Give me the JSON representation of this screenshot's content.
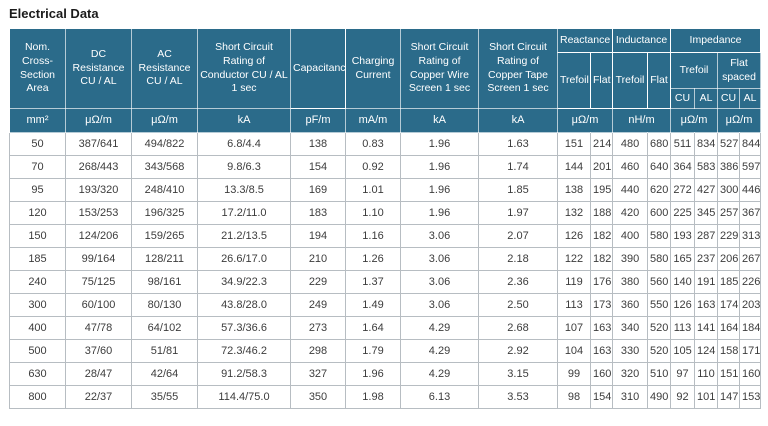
{
  "title": "Electrical Data",
  "colors": {
    "header_bg": "#2b6b8a",
    "header_text": "#ffffff",
    "header_grid_line": "#ffffff",
    "data_grid_line": "#b7bdc2",
    "data_text": "#3c3c3c",
    "page_bg": "#ffffff"
  },
  "chart_data": {
    "type": "table",
    "title": "Electrical Data",
    "header": {
      "main": [
        "Nom. Cross-Section Area",
        "DC Resistance CU / AL",
        "AC Resistance CU / AL",
        "Short Circuit Rating of Conductor CU / AL 1 sec",
        "Capacitance",
        "Charging Current",
        "Short Circuit Rating of Copper Wire Screen 1 sec",
        "Short Circuit Rating of Copper Tape Screen 1 sec"
      ],
      "reactance": {
        "label": "Reactance",
        "trefoil": "Trefoil",
        "flat": "Flat"
      },
      "inductance": {
        "label": "Inductance",
        "trefoil": "Trefoil",
        "flat": "Flat"
      },
      "impedance": {
        "label": "Impedance",
        "trefoil": {
          "label": "Trefoil",
          "cu": "CU",
          "al": "AL"
        },
        "flat_spaced": {
          "label": "Flat spaced",
          "cu": "CU",
          "al": "AL"
        }
      }
    },
    "units": [
      "mm²",
      "μΩ/m",
      "μΩ/m",
      "kA",
      "pF/m",
      "mA/m",
      "kA",
      "kA",
      "μΩ/m",
      "nH/m",
      "μΩ/m",
      "μΩ/m"
    ],
    "rows": [
      [
        "50",
        "387/641",
        "494/822",
        "6.8/4.4",
        "138",
        "0.83",
        "1.96",
        "1.63",
        "151",
        "214",
        "480",
        "680",
        "511",
        "834",
        "527",
        "844"
      ],
      [
        "70",
        "268/443",
        "343/568",
        "9.8/6.3",
        "154",
        "0.92",
        "1.96",
        "1.74",
        "144",
        "201",
        "460",
        "640",
        "364",
        "583",
        "386",
        "597"
      ],
      [
        "95",
        "193/320",
        "248/410",
        "13.3/8.5",
        "169",
        "1.01",
        "1.96",
        "1.85",
        "138",
        "195",
        "440",
        "620",
        "272",
        "427",
        "300",
        "446"
      ],
      [
        "120",
        "153/253",
        "196/325",
        "17.2/11.0",
        "183",
        "1.10",
        "1.96",
        "1.97",
        "132",
        "188",
        "420",
        "600",
        "225",
        "345",
        "257",
        "367"
      ],
      [
        "150",
        "124/206",
        "159/265",
        "21.2/13.5",
        "194",
        "1.16",
        "3.06",
        "2.07",
        "126",
        "182",
        "400",
        "580",
        "193",
        "287",
        "229",
        "313"
      ],
      [
        "185",
        "99/164",
        "128/211",
        "26.6/17.0",
        "210",
        "1.26",
        "3.06",
        "2.18",
        "122",
        "182",
        "390",
        "580",
        "165",
        "237",
        "206",
        "267"
      ],
      [
        "240",
        "75/125",
        "98/161",
        "34.9/22.3",
        "229",
        "1.37",
        "3.06",
        "2.36",
        "119",
        "176",
        "380",
        "560",
        "140",
        "191",
        "185",
        "226"
      ],
      [
        "300",
        "60/100",
        "80/130",
        "43.8/28.0",
        "249",
        "1.49",
        "3.06",
        "2.50",
        "113",
        "173",
        "360",
        "550",
        "126",
        "163",
        "174",
        "203"
      ],
      [
        "400",
        "47/78",
        "64/102",
        "57.3/36.6",
        "273",
        "1.64",
        "4.29",
        "2.68",
        "107",
        "163",
        "340",
        "520",
        "113",
        "141",
        "164",
        "184"
      ],
      [
        "500",
        "37/60",
        "51/81",
        "72.3/46.2",
        "298",
        "1.79",
        "4.29",
        "2.92",
        "104",
        "163",
        "330",
        "520",
        "105",
        "124",
        "158",
        "171"
      ],
      [
        "630",
        "28/47",
        "42/64",
        "91.2/58.3",
        "327",
        "1.96",
        "4.29",
        "3.15",
        "99",
        "160",
        "320",
        "510",
        "97",
        "110",
        "151",
        "160"
      ],
      [
        "800",
        "22/37",
        "35/55",
        "114.4/75.0",
        "350",
        "1.98",
        "6.13",
        "3.53",
        "98",
        "154",
        "310",
        "490",
        "92",
        "101",
        "147",
        "153"
      ]
    ]
  }
}
